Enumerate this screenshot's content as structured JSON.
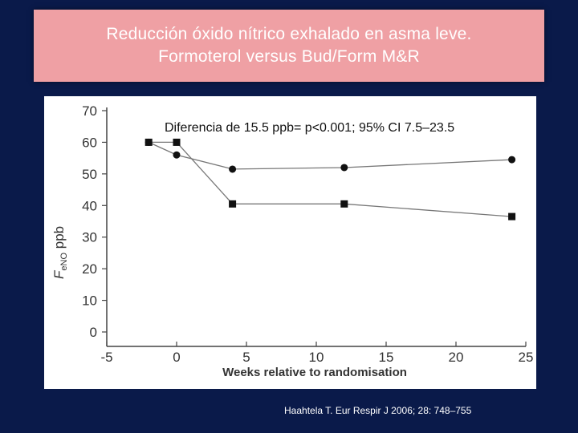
{
  "title": {
    "line1": "Reducción óxido nítrico exhalado en asma leve.",
    "line2": "Formoterol versus Bud/Form M&R"
  },
  "citation": "Haahtela T. Eur Respir J 2006; 28: 748–755",
  "chart_data": {
    "type": "line",
    "annotation": "Diferencia de 15.5 ppb= p<0.001; 95% CI 7.5–23.5",
    "xlabel": "Weeks relative to randomisation",
    "ylabel_main": "F",
    "ylabel_sub": "eNO",
    "ylabel_unit": " ppb",
    "xlim": [
      -5,
      25
    ],
    "ylim": [
      0,
      70
    ],
    "xticks": [
      -5,
      0,
      5,
      10,
      15,
      20,
      25
    ],
    "yticks": [
      0,
      10,
      20,
      30,
      40,
      50,
      60,
      70
    ],
    "grid": false,
    "series": [
      {
        "name": "circles",
        "marker": "circle",
        "x": [
          -2,
          0,
          4,
          12,
          24
        ],
        "values": [
          60,
          56,
          51.5,
          52,
          54.5
        ]
      },
      {
        "name": "squares",
        "marker": "square",
        "x": [
          -2,
          0,
          4,
          12,
          24
        ],
        "values": [
          60,
          60,
          40.5,
          40.5,
          36.5
        ]
      }
    ],
    "colors": {
      "line": "#777777",
      "marker": "#111111",
      "axis": "#444444"
    }
  }
}
